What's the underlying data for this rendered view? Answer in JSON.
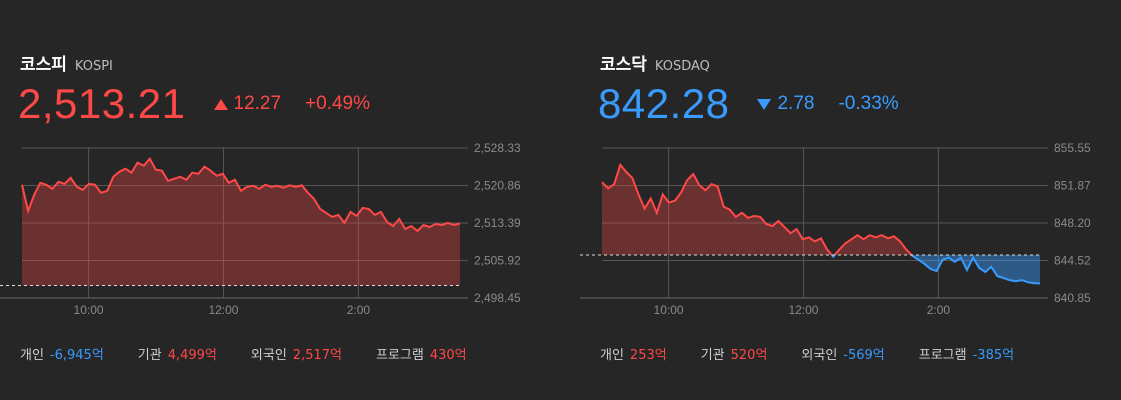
{
  "colors": {
    "background": "#262626",
    "up": "#ff4848",
    "down": "#3a9bff",
    "grid": "#555555"
  },
  "kospi": {
    "name_ko": "코스피",
    "name_en": "KOSPI",
    "price": "2,513.21",
    "direction": "up",
    "change": "12.27",
    "change_pct": "+0.49%",
    "flows": [
      {
        "label": "개인",
        "value": "-6,945억",
        "direction": "down"
      },
      {
        "label": "기관",
        "value": "4,499억",
        "direction": "up"
      },
      {
        "label": "외국인",
        "value": "2,517억",
        "direction": "up"
      },
      {
        "label": "프로그램",
        "value": "430억",
        "direction": "up"
      }
    ]
  },
  "kosdaq": {
    "name_ko": "코스닥",
    "name_en": "KOSDAQ",
    "price": "842.28",
    "direction": "down",
    "change": "2.78",
    "change_pct": "-0.33%",
    "flows": [
      {
        "label": "개인",
        "value": "253억",
        "direction": "up"
      },
      {
        "label": "기관",
        "value": "520억",
        "direction": "up"
      },
      {
        "label": "외국인",
        "value": "-569억",
        "direction": "down"
      },
      {
        "label": "프로그램",
        "value": "-385억",
        "direction": "down"
      }
    ]
  },
  "chart_data": [
    {
      "type": "area",
      "title": "코스피 KOSPI",
      "x_ticks": [
        "10:00",
        "12:00",
        "2:00"
      ],
      "y_ticks": [
        "2,528.33",
        "2,520.86",
        "2,513.39",
        "2,505.92",
        "2,498.45"
      ],
      "ylim": [
        2498.45,
        2528.33
      ],
      "baseline": 2500.94,
      "series": [
        {
          "x": [
            0,
            0.5,
            1,
            1.5,
            2,
            2.5,
            3,
            3.5,
            4,
            4.5,
            5,
            5.5,
            6,
            6.5,
            7,
            7.5,
            8,
            8.5,
            9,
            9.5,
            10,
            10.5,
            11,
            11.5,
            12,
            12.5,
            13,
            13.5,
            14,
            14.5,
            15,
            15.5,
            16,
            16.5,
            17,
            17.5,
            18,
            18.5,
            19,
            19.5,
            20,
            20.5,
            21,
            21.5,
            22,
            22.5,
            23,
            23.5,
            24,
            24.5,
            25,
            25.5,
            26,
            26.5,
            27,
            27.5,
            28,
            28.5,
            29,
            29.5,
            30,
            30.5,
            31,
            31.5,
            32,
            32.5,
            33,
            33.5,
            34,
            34.5,
            35,
            35.5,
            36
          ],
          "y": [
            2521.0,
            2515.8,
            2519.0,
            2521.4,
            2521.0,
            2520.2,
            2521.6,
            2521.2,
            2522.4,
            2520.6,
            2520.0,
            2521.2,
            2521.0,
            2519.4,
            2519.8,
            2522.6,
            2523.6,
            2524.2,
            2523.4,
            2525.4,
            2524.8,
            2526.2,
            2524.0,
            2523.8,
            2521.8,
            2522.2,
            2522.6,
            2522.0,
            2523.4,
            2523.2,
            2524.6,
            2523.8,
            2522.8,
            2523.2,
            2521.4,
            2522.0,
            2519.8,
            2520.6,
            2520.8,
            2520.2,
            2521.0,
            2520.6,
            2520.8,
            2520.4,
            2520.9,
            2520.6,
            2520.9,
            2519.4,
            2518.2,
            2516.2,
            2515.4,
            2514.6,
            2515.0,
            2513.4,
            2515.6,
            2514.8,
            2516.4,
            2516.2,
            2515.0,
            2515.6,
            2513.6,
            2512.8,
            2514.2,
            2512.2,
            2512.8,
            2511.8,
            2513.0,
            2512.6,
            2513.2,
            2513.0,
            2513.4,
            2513.0,
            2513.3
          ],
          "color": "#ff4848"
        }
      ]
    },
    {
      "type": "area",
      "title": "코스닥 KOSDAQ",
      "x_ticks": [
        "10:00",
        "12:00",
        "2:00"
      ],
      "y_ticks": [
        "855.55",
        "851.87",
        "848.20",
        "844.52",
        "840.85"
      ],
      "ylim": [
        840.85,
        855.55
      ],
      "baseline": 845.06,
      "series": [
        {
          "x": [
            0,
            0.5,
            1,
            1.5,
            2,
            2.5,
            3,
            3.5,
            4,
            4.5,
            5,
            5.5,
            6,
            6.5,
            7,
            7.5,
            8,
            8.5,
            9,
            9.5,
            10,
            10.5,
            11,
            11.5,
            12,
            12.5,
            13,
            13.5,
            14,
            14.5,
            15,
            15.5,
            16,
            16.5,
            17,
            17.5,
            18,
            18.5,
            19,
            19.5,
            20,
            20.5,
            21,
            21.5,
            22,
            22.5,
            23,
            23.5,
            24,
            24.5,
            25,
            25.5,
            26,
            26.5,
            27,
            27.5,
            28,
            28.5,
            29,
            29.5,
            30,
            30.5,
            31,
            31.5,
            32,
            32.5,
            33,
            33.5,
            34,
            34.5,
            35,
            35.5,
            36
          ],
          "y": [
            852.2,
            851.6,
            852.0,
            853.9,
            853.2,
            852.6,
            851.0,
            849.6,
            850.6,
            849.2,
            851.0,
            850.2,
            850.4,
            851.2,
            852.4,
            853.0,
            851.9,
            851.4,
            852.0,
            851.8,
            849.8,
            849.5,
            848.8,
            849.2,
            848.7,
            848.9,
            848.8,
            848.1,
            847.9,
            848.4,
            847.8,
            847.2,
            847.6,
            846.6,
            846.8,
            846.4,
            846.7,
            845.6,
            844.9,
            845.6,
            846.2,
            846.6,
            847.0,
            846.6,
            847.0,
            846.8,
            847.0,
            846.7,
            846.9,
            846.4,
            845.6,
            845.0,
            844.6,
            844.2,
            843.7,
            843.5,
            844.6,
            844.8,
            844.4,
            844.8,
            843.6,
            844.8,
            843.8,
            843.4,
            843.9,
            843.0,
            842.8,
            842.6,
            842.5,
            842.6,
            842.4,
            842.3,
            842.28
          ],
          "color": "#3a9bff"
        }
      ]
    }
  ]
}
